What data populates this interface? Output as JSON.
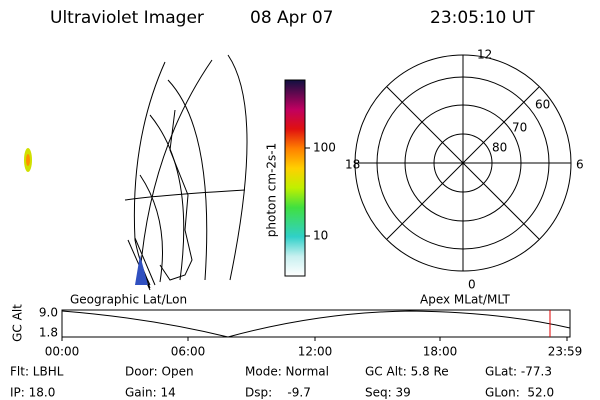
{
  "header": {
    "instrument": "Ultraviolet Imager",
    "date": "08 Apr 07",
    "time": "23:05:10 UT"
  },
  "colorbar": {
    "label": "photon cm-2s-1",
    "ticks": [
      "100",
      "10"
    ]
  },
  "polar": {
    "hours": [
      "12",
      "18",
      "6",
      "0"
    ],
    "latitudes": [
      "60",
      "70",
      "80"
    ]
  },
  "timeline": {
    "axis_label": "GC Alt",
    "left_title": "Geographic Lat/Lon",
    "right_title": "Apex MLat/MLT",
    "y_labels": [
      "9.0",
      "1.8"
    ],
    "x_labels": [
      "00:00",
      "06:00",
      "12:00",
      "18:00",
      "23:59"
    ]
  },
  "info": [
    [
      "Flt: LBHL",
      "Door: Open",
      "Mode: Normal",
      "GC Alt: 5.8 Re",
      "GLat: -77.3"
    ],
    [
      "IP: 18.0",
      "Gain: 14",
      "Dsp:    -9.7",
      "Seq: 39",
      "GLon:  52.0"
    ]
  ]
}
